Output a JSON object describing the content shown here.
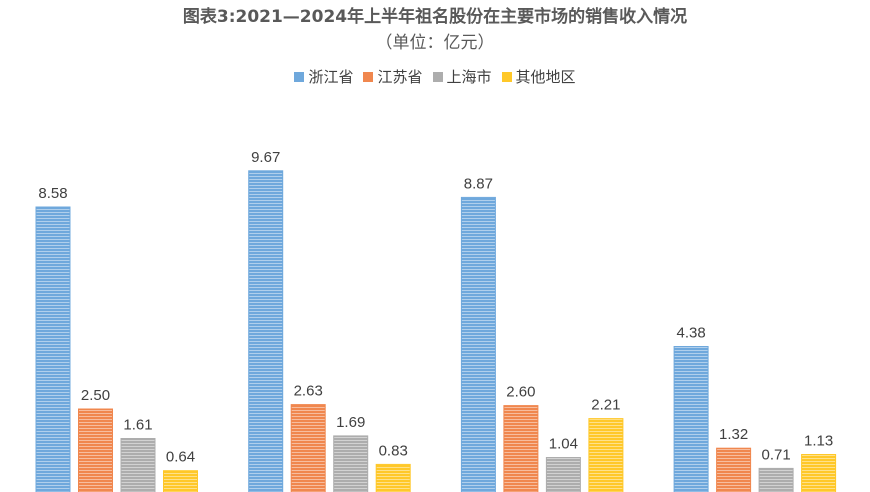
{
  "chart_data": {
    "type": "bar",
    "title": "图表3:2021—2024年上半年祖名股份在主要市场的销售收入情况",
    "subtitle": "（单位：亿元）",
    "categories": [
      "",
      "",
      "",
      ""
    ],
    "series": [
      {
        "name": "浙江省",
        "color": "#6FA8DC",
        "values": [
          8.58,
          9.67,
          8.87,
          4.38
        ],
        "labels": [
          "8.58",
          "9.67",
          "8.87",
          "4.38"
        ]
      },
      {
        "name": "江苏省",
        "color": "#F0874E",
        "values": [
          2.5,
          2.63,
          2.6,
          1.32
        ],
        "labels": [
          "2.50",
          "2.63",
          "2.60",
          "1.32"
        ]
      },
      {
        "name": "上海市",
        "color": "#ADADAD",
        "values": [
          1.61,
          1.69,
          1.04,
          0.71
        ],
        "labels": [
          "1.61",
          "1.69",
          "1.04",
          "0.71"
        ]
      },
      {
        "name": "其他地区",
        "color": "#FFC829",
        "values": [
          0.64,
          0.83,
          2.21,
          1.13
        ],
        "labels": [
          "0.64",
          "0.83",
          "2.21",
          "1.13"
        ]
      }
    ],
    "ylim": [
      0,
      11.5
    ],
    "legend": "top",
    "grid": false
  }
}
